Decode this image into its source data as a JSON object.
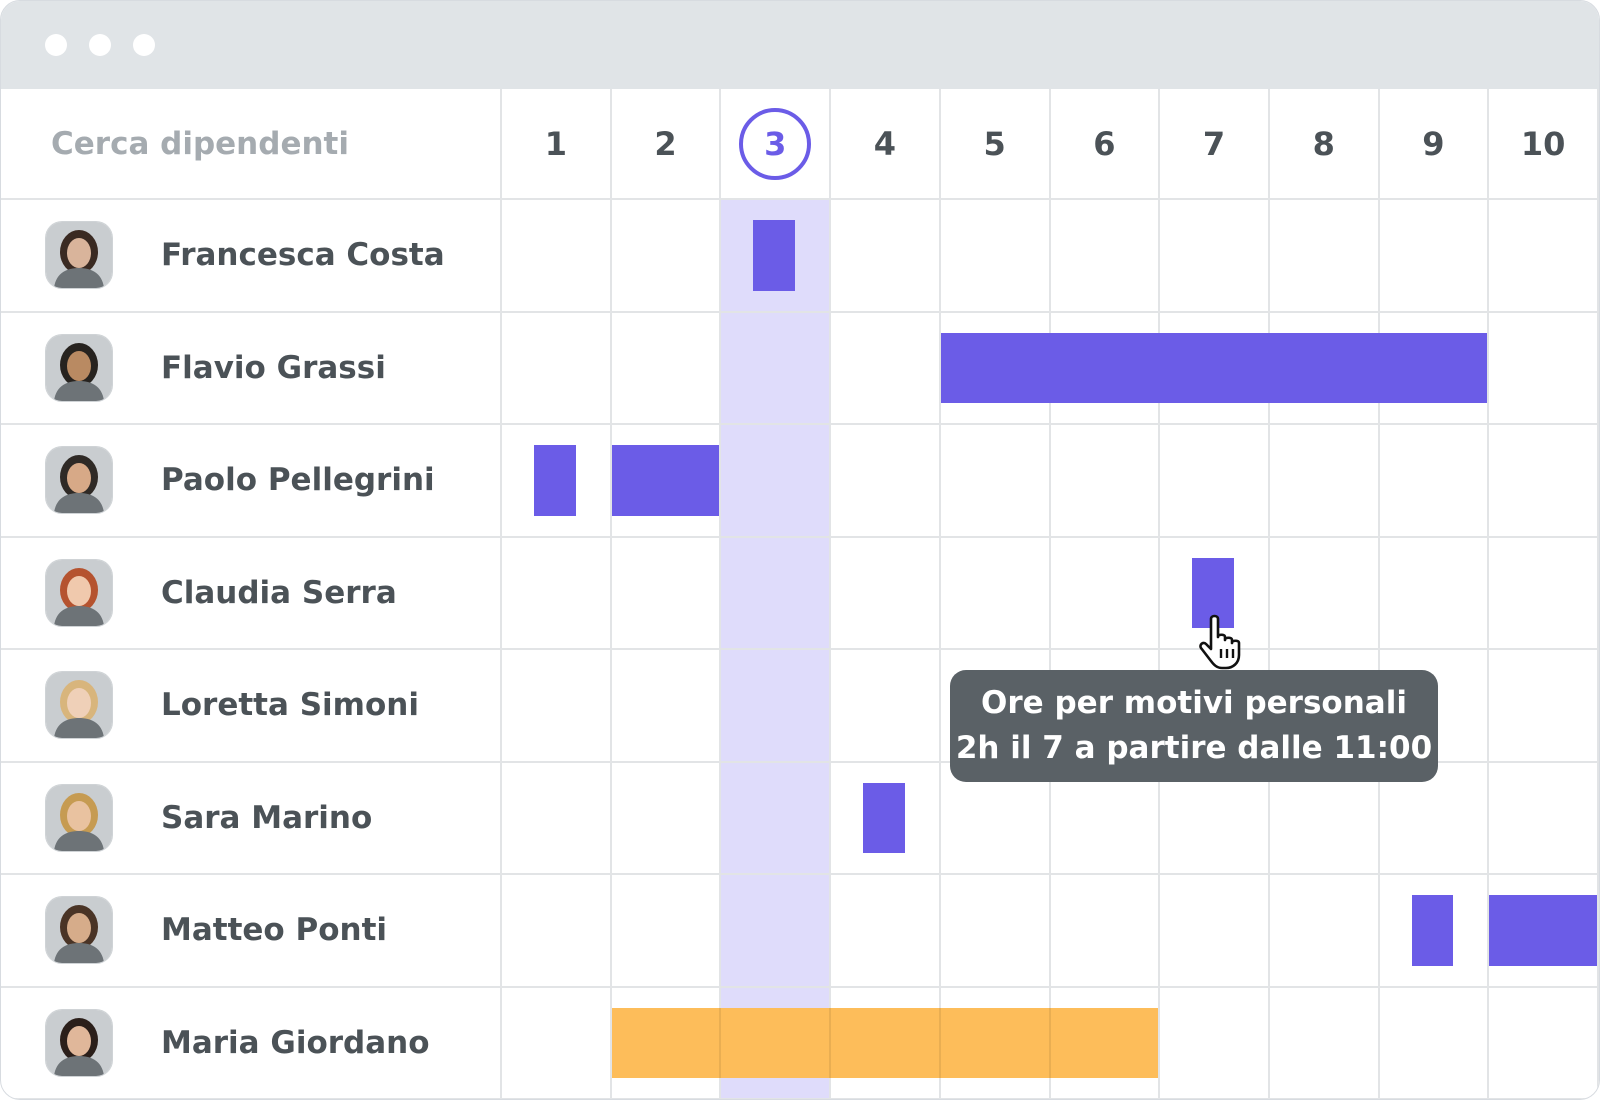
{
  "window": {
    "controls": [
      "dot",
      "dot",
      "dot"
    ]
  },
  "header": {
    "search_placeholder": "Cerca dipendenti",
    "days": [
      "1",
      "2",
      "3",
      "4",
      "5",
      "6",
      "7",
      "8",
      "9",
      "10"
    ],
    "today_day": 3
  },
  "employees": [
    {
      "name": "Francesca Costa",
      "avatar": "avatar-photo",
      "absences": [
        {
          "day": 3,
          "fraction": 0.38,
          "offset": 0.3,
          "type": "personal-hours"
        }
      ]
    },
    {
      "name": "Flavio Grassi",
      "avatar": "avatar-photo",
      "absences": [
        {
          "day": 5,
          "days": 5,
          "type": "full-day"
        }
      ]
    },
    {
      "name": "Paolo Pellegrini",
      "avatar": "avatar-photo",
      "absences": [
        {
          "day": 1,
          "fraction": 0.38,
          "offset": 0.3,
          "type": "personal-hours"
        },
        {
          "day": 2,
          "days": 1,
          "type": "full-day"
        }
      ]
    },
    {
      "name": "Claudia Serra",
      "avatar": "avatar-photo",
      "absences": [
        {
          "day": 7,
          "fraction": 0.38,
          "offset": 0.3,
          "type": "personal-hours"
        }
      ]
    },
    {
      "name": "Loretta Simoni",
      "avatar": "avatar-photo",
      "absences": []
    },
    {
      "name": "Sara Marino",
      "avatar": "avatar-photo",
      "absences": [
        {
          "day": 4,
          "fraction": 0.38,
          "offset": 0.3,
          "type": "personal-hours"
        }
      ]
    },
    {
      "name": "Matteo Ponti",
      "avatar": "avatar-photo",
      "absences": [
        {
          "day": 9,
          "fraction": 0.38,
          "offset": 0.3,
          "type": "personal-hours"
        },
        {
          "day": 10,
          "days": 1,
          "type": "full-day"
        }
      ]
    },
    {
      "name": "Maria Giordano",
      "avatar": "avatar-photo",
      "absences": [
        {
          "day": 2,
          "days": 5,
          "type": "vacation"
        }
      ]
    }
  ],
  "colors": {
    "absence": "#6b5ce7",
    "vacation": "#fdbd5a",
    "today_highlight": "#dfdcfb",
    "tooltip_bg": "#5a6166"
  },
  "tooltip": {
    "line1": "Ore per motivi personali",
    "line2": "2h il 7 a partire dalle 11:00"
  },
  "cursor": {
    "icon": "hand-pointer-icon"
  }
}
